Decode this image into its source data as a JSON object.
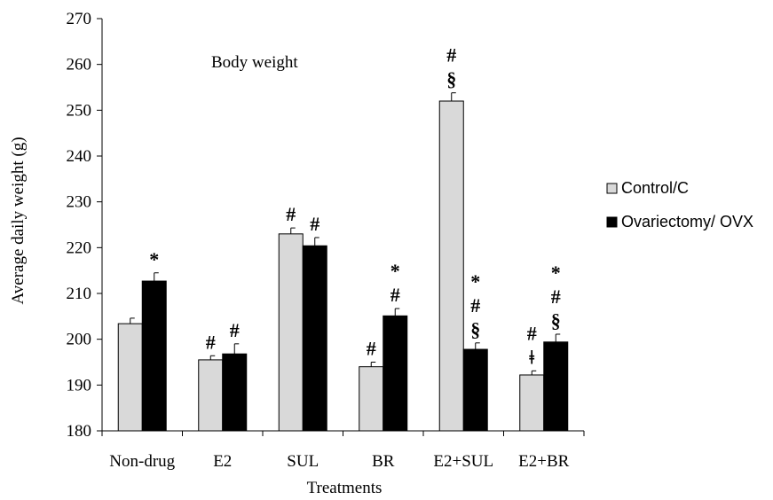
{
  "chart_data": {
    "type": "bar",
    "title": "Body weight",
    "xlabel": "Treatments",
    "ylabel": "Average daily weight (g)",
    "ylim": [
      180,
      270
    ],
    "yticks": [
      180,
      190,
      200,
      210,
      220,
      230,
      240,
      250,
      260,
      270
    ],
    "categories": [
      "Non-drug",
      "E2",
      "SUL",
      "BR",
      "E2+SUL",
      "E2+BR"
    ],
    "series": [
      {
        "name": "Control/C",
        "color": "#d9d9d9",
        "values": [
          203.4,
          195.5,
          223.0,
          194.0,
          252.0,
          192.2
        ],
        "errors": [
          1.2,
          0.9,
          1.3,
          1.0,
          1.8,
          0.9
        ],
        "annotations": [
          [],
          [
            "#"
          ],
          [
            "#"
          ],
          [
            "#"
          ],
          [
            "§",
            "#"
          ],
          [
            "ǂ",
            "#"
          ]
        ]
      },
      {
        "name": "Ovariectomy/ OVX",
        "color": "#000000",
        "values": [
          212.7,
          196.8,
          220.4,
          205.1,
          197.8,
          199.4
        ],
        "errors": [
          1.8,
          2.2,
          1.8,
          1.6,
          1.4,
          1.7
        ],
        "annotations": [
          [
            "*"
          ],
          [
            "#"
          ],
          [
            "#"
          ],
          [
            "#",
            "*"
          ],
          [
            "§",
            "#",
            "*"
          ],
          [
            "§",
            "#",
            "*"
          ]
        ]
      }
    ],
    "legend_position": "right",
    "grid": false
  }
}
